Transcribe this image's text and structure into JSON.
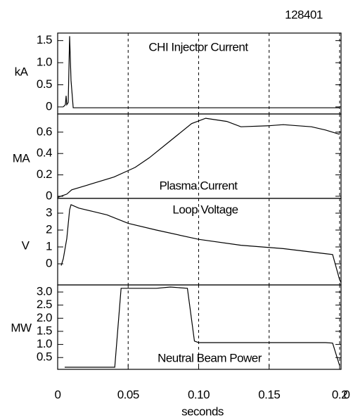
{
  "chart_data": [
    {
      "type": "line",
      "annotation": "128401",
      "title": "CHI Injector Current",
      "ylabel": "kA",
      "x": [
        0.004,
        0.0055,
        0.006,
        0.0065,
        0.0075,
        0.0085,
        0.0095,
        0.011,
        0.02,
        0.2
      ],
      "values": [
        0,
        0.05,
        0.25,
        0.05,
        0.1,
        1.6,
        0.6,
        -0.02,
        -0.02,
        -0.02
      ],
      "color": "#000000",
      "xlim": [
        0,
        0.201
      ],
      "ylim": [
        -0.16,
        1.67
      ],
      "yticks": [
        0,
        0.5,
        {
          "value": 1,
          "label": "1.0"
        },
        1.5
      ]
    },
    {
      "type": "line",
      "title": "Plasma Current",
      "ylabel": "MA",
      "x": [
        0,
        0.0065,
        0.01,
        0.02,
        0.04,
        0.05,
        0.055,
        0.065,
        0.08,
        0.095,
        0.105,
        0.12,
        0.13,
        0.15,
        0.16,
        0.18,
        0.19,
        0.2
      ],
      "values": [
        -0.01,
        0.02,
        0.06,
        0.1,
        0.18,
        0.24,
        0.27,
        0.36,
        0.52,
        0.68,
        0.73,
        0.7,
        0.65,
        0.66,
        0.67,
        0.65,
        0.62,
        0.58
      ],
      "color": "#000000",
      "xlim": [
        0,
        0.201
      ],
      "ylim": [
        -0.02,
        0.77
      ],
      "yticks": [
        0,
        0.2,
        0.4,
        0.6
      ]
    },
    {
      "type": "line",
      "title": "Loop Voltage",
      "ylabel": "V",
      "x": [
        0.0025,
        0.004,
        0.0065,
        0.0085,
        0.0095,
        0.015,
        0.025,
        0.035,
        0.05,
        0.07,
        0.1,
        0.13,
        0.16,
        0.19,
        0.195,
        0.2,
        0.201
      ],
      "values": [
        -0.1,
        0.3,
        1.5,
        3.2,
        3.5,
        3.3,
        3.1,
        2.9,
        2.4,
        2.0,
        1.45,
        1.1,
        0.9,
        0.6,
        0.55,
        -0.95,
        -1.1
      ],
      "color": "#000000",
      "xlim": [
        0,
        0.201
      ],
      "ylim": [
        -1.25,
        3.875
      ],
      "yticks": [
        0,
        1,
        2,
        3
      ]
    },
    {
      "type": "line",
      "title": "Neutral Beam Power",
      "ylabel": "MW",
      "xlabel": "seconds",
      "x": [
        0.005,
        0.0405,
        0.045,
        0.07,
        0.08,
        0.092,
        0.097,
        0.1,
        0.19,
        0.195,
        0.2
      ],
      "values": [
        0.13,
        0.13,
        3.14,
        3.14,
        3.19,
        3.14,
        1.13,
        1.07,
        1.07,
        1.05,
        0.19
      ],
      "color": "#000000",
      "xlim": [
        0,
        0.201
      ],
      "ylim": [
        0.05,
        3.27
      ],
      "yticks": [
        0.5,
        {
          "value": 1,
          "label": "1.0"
        },
        1.5,
        {
          "value": 2,
          "label": "2.0"
        },
        2.5,
        {
          "value": 3,
          "label": "3.0"
        }
      ],
      "xticks": [
        0,
        0.05,
        {
          "value": 0.1,
          "label": "0.10"
        },
        0.15,
        0.2,
        {
          "value": 0.205,
          "label": "0"
        }
      ],
      "grid": "x"
    }
  ]
}
